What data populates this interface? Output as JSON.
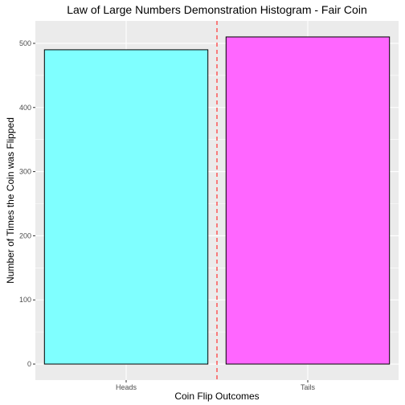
{
  "chart_data": {
    "type": "bar",
    "title": "Law of Large Numbers Demonstration Histogram - Fair Coin",
    "xlabel": "Coin Flip Outcomes",
    "ylabel": "Number of Times the Coin was Flipped",
    "categories": [
      "Heads",
      "Tails"
    ],
    "values": [
      490,
      510
    ],
    "bar_colors": [
      "#7FFFFF",
      "#FF66FF"
    ],
    "bar_outline": "#000000",
    "ylim": [
      -25,
      535
    ],
    "yticks": [
      0,
      100,
      200,
      300,
      400,
      500
    ],
    "grid": true,
    "panel_background": "#EBEBEB",
    "reference_line": {
      "type": "vertical",
      "position": "between-categories",
      "color": "#FF3333",
      "style": "dashed"
    }
  }
}
